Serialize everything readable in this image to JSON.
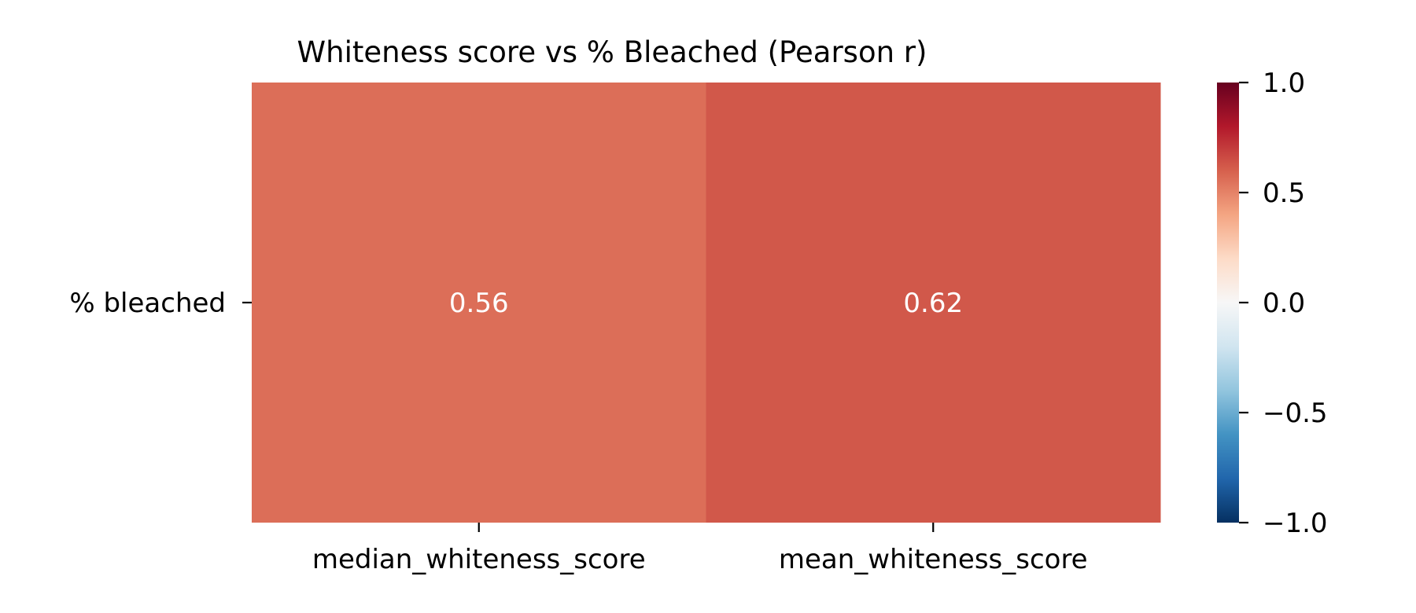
{
  "chart_data": {
    "type": "heatmap",
    "title": "Whiteness score vs % Bleached (Pearson r)",
    "rows": [
      "% bleached"
    ],
    "columns": [
      "median_whiteness_score",
      "mean_whiteness_score"
    ],
    "values": [
      [
        0.56,
        0.62
      ]
    ],
    "value_labels": [
      [
        "0.56",
        "0.62"
      ]
    ],
    "colorbar": {
      "colormap": "RdBu_r",
      "range": [
        -1.0,
        1.0
      ],
      "ticks": [
        1.0,
        0.5,
        0.0,
        -0.5,
        -1.0
      ],
      "tick_labels": [
        "1.0",
        "0.5",
        "0.0",
        "−0.5",
        "−1.0"
      ]
    },
    "cell_colors": [
      [
        "#dc6e58",
        "#d1584a"
      ]
    ],
    "annotation_color": "#ffffff",
    "grid": false,
    "legend": "colorbar-right"
  }
}
